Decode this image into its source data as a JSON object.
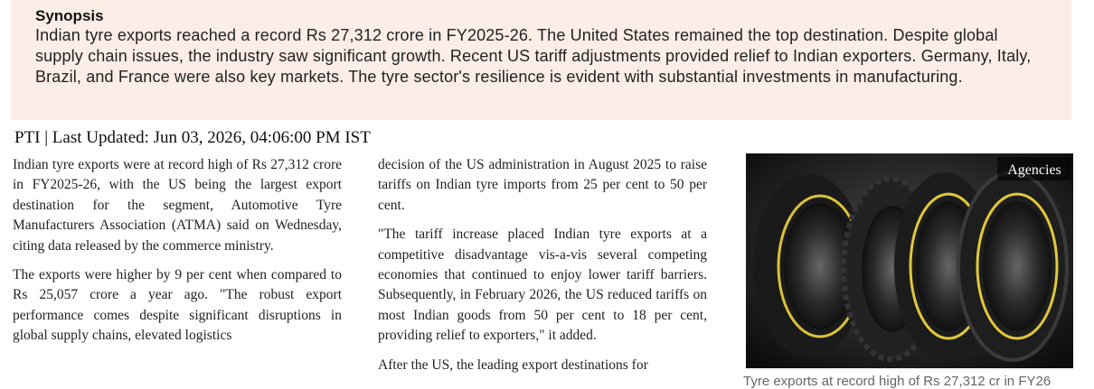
{
  "synopsis": {
    "title": "Synopsis",
    "body": "Indian tyre exports reached a record Rs 27,312 crore in FY2025-26. The United States remained the top destination. Despite global supply chain issues, the industry saw significant growth. Recent US tariff adjustments provided relief to Indian exporters. Germany, Italy, Brazil, and France were also key markets. The tyre sector's resilience is evident with substantial investments in manufacturing."
  },
  "byline": "PTI | Last Updated: Jun 03, 2026, 04:06:00 PM IST",
  "columns": [
    [
      "Indian tyre exports were at record high of Rs 27,312 crore in FY2025-26, with the US being the largest export destination for the segment, Automotive Tyre Manufacturers Association (ATMA) said on Wednesday, citing data released by the commerce ministry.",
      "The exports were higher by 9 per cent when compared to Rs 25,057 crore a year ago. \"The robust export performance comes despite significant disruptions in global supply chains, elevated logistics"
    ],
    [
      "decision of the US administration in August 2025 to raise tariffs on Indian tyre imports from 25 per cent to 50 per cent.",
      "\"The tariff increase placed Indian tyre exports at a competitive disadvantage vis-a-vis several competing economies that continued to enjoy lower tariff barriers. Subsequently, in February 2026, the US reduced tariffs on most Indian goods from 50 per cent to 18 per cent, providing relief to exporters,\" it added.",
      "After the US, the leading export destinations for"
    ]
  ],
  "image": {
    "credit": "Agencies",
    "caption": "Tyre exports at record high of Rs 27,312 cr in FY26"
  }
}
